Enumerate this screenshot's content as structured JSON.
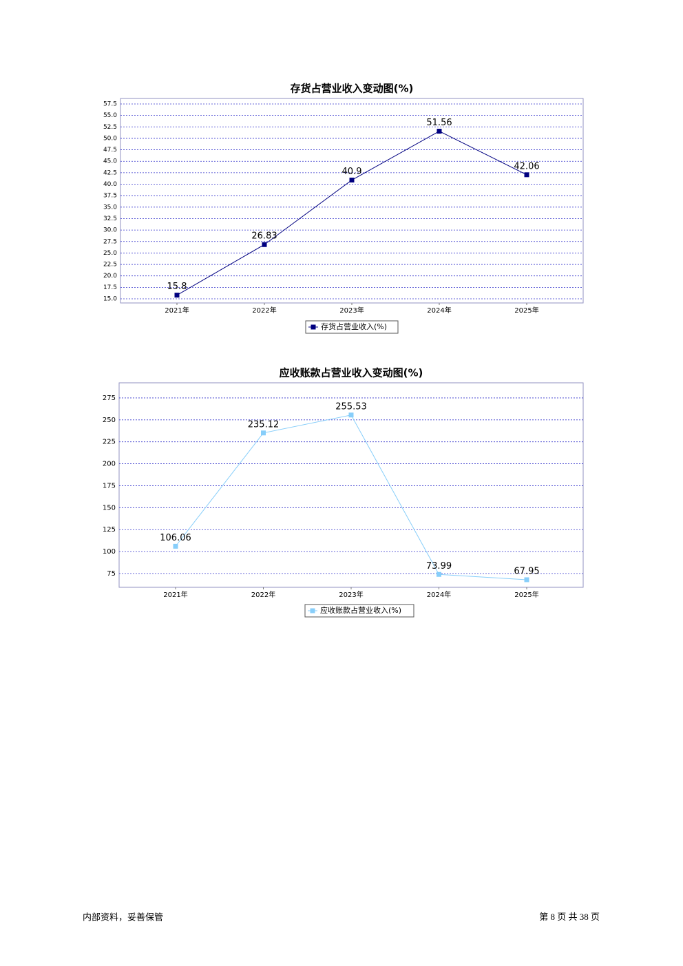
{
  "chart_data": [
    {
      "type": "line",
      "title": "存货占营业收入变动图(%)",
      "categories": [
        "2021年",
        "2022年",
        "2023年",
        "2024年",
        "2025年"
      ],
      "series": [
        {
          "name": "存货占营业收入(%)",
          "color": "#000080",
          "values": [
            15.8,
            26.83,
            40.9,
            51.56,
            42.06
          ]
        }
      ],
      "ylim": [
        14.1,
        58.7
      ],
      "yticks": [
        {
          "value": 15,
          "label": "15.0"
        },
        {
          "value": 17.5,
          "label": "17.5"
        },
        {
          "value": 20,
          "label": "20.0"
        },
        {
          "value": 22.5,
          "label": "22.5"
        },
        {
          "value": 25,
          "label": "25.0"
        },
        {
          "value": 27.5,
          "label": "27.5"
        },
        {
          "value": 30,
          "label": "30.0"
        },
        {
          "value": 32.5,
          "label": "32.5"
        },
        {
          "value": 35,
          "label": "35.0"
        },
        {
          "value": 37.5,
          "label": "37.5"
        },
        {
          "value": 40,
          "label": "40.0"
        },
        {
          "value": 42.5,
          "label": "42.5"
        },
        {
          "value": 45,
          "label": "45.0"
        },
        {
          "value": 47.5,
          "label": "47.5"
        },
        {
          "value": 50,
          "label": "50.0"
        },
        {
          "value": 52.5,
          "label": "52.5"
        },
        {
          "value": 55,
          "label": "55.0"
        },
        {
          "value": 57.5,
          "label": "57.5"
        }
      ],
      "grid": true
    },
    {
      "type": "line",
      "title": "应收账款占营业收入变动图(%)",
      "categories": [
        "2021年",
        "2022年",
        "2023年",
        "2024年",
        "2025年"
      ],
      "series": [
        {
          "name": "应收账款占营业收入(%)",
          "color": "#87cefa",
          "values": [
            106.06,
            235.12,
            255.53,
            73.99,
            67.95
          ]
        }
      ],
      "ylim": [
        59.3,
        292.2
      ],
      "yticks": [
        75,
        100,
        125,
        150,
        175,
        200,
        225,
        250,
        275
      ],
      "grid": true
    }
  ],
  "footer": {
    "note": "内部资料，妥善保管",
    "page": "第 8 页 共 38 页"
  }
}
